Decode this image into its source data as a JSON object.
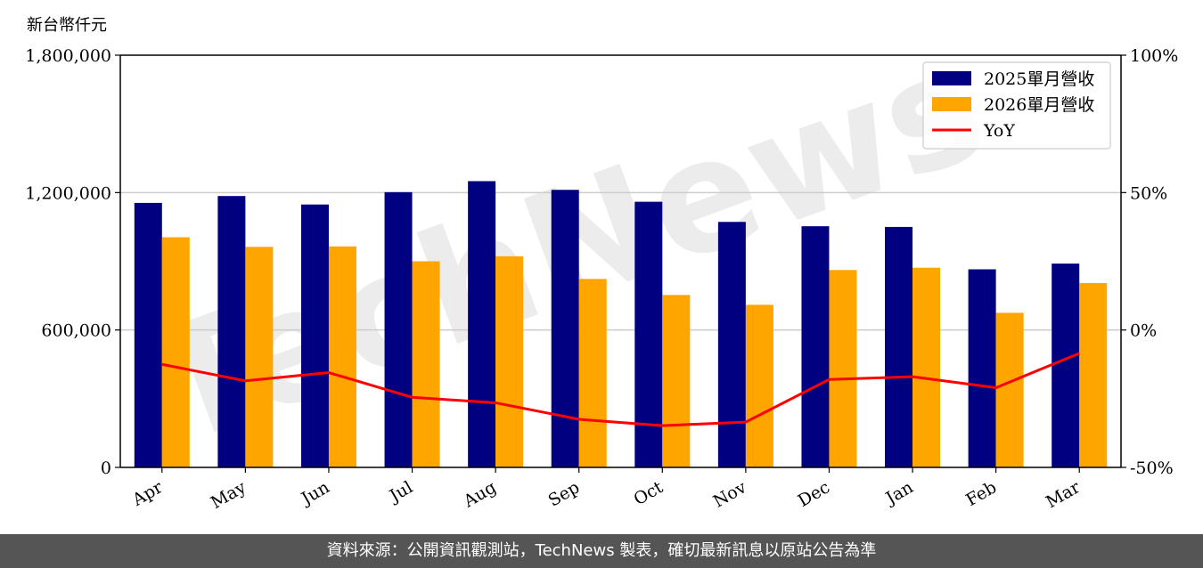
{
  "chart_data": {
    "type": "bar",
    "categories": [
      "Apr",
      "May",
      "Jun",
      "Jul",
      "Aug",
      "Sep",
      "Oct",
      "Nov",
      "Dec",
      "Jan",
      "Feb",
      "Mar"
    ],
    "series": [
      {
        "name": "2025單月營收",
        "type": "bar",
        "color": "#000080",
        "values": [
          1155000,
          1185000,
          1148000,
          1202000,
          1250000,
          1212000,
          1160000,
          1072000,
          1053000,
          1050000,
          865000,
          890000
        ]
      },
      {
        "name": "2026單月營收",
        "type": "bar",
        "color": "#FFA500",
        "values": [
          1005000,
          963000,
          965000,
          900000,
          922000,
          823000,
          753000,
          710000,
          862000,
          872000,
          675000,
          805000
        ]
      },
      {
        "name": "YoY",
        "type": "line",
        "axis": "right",
        "color": "#FF0000",
        "values": [
          -12.5,
          -18.5,
          -15.5,
          -24.5,
          -26.5,
          -32.5,
          -34.8,
          -33.5,
          -18.0,
          -17.0,
          -21.0,
          -8.5
        ]
      }
    ],
    "ylabel": "新台幣仟元",
    "ylim": [
      0,
      1800000
    ],
    "yticks": [
      0,
      600000,
      1200000,
      1800000
    ],
    "ytick_labels": [
      "0",
      "600,000",
      "1,200,000",
      "1,800,000"
    ],
    "y2lim": [
      -50,
      100
    ],
    "y2ticks": [
      -50,
      0,
      50,
      100
    ],
    "y2tick_labels": [
      "-50%",
      "0%",
      "50%",
      "100%"
    ],
    "grid": "horizontal",
    "legend_position": "top-right",
    "watermark": "TechNews"
  },
  "footer": {
    "source": "資料來源：公開資訊觀測站，TechNews 製表，確切最新訊息以原站公告為準"
  }
}
